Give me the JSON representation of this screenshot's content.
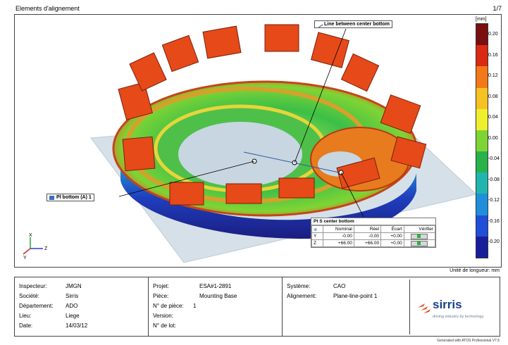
{
  "header": {
    "title": "Elements d'alignement",
    "page": "1/7"
  },
  "colorbar": {
    "unit": "[mm]",
    "ticks": [
      "0.20",
      "0.16",
      "0.12",
      "0.08",
      "0.04",
      "0.00",
      "-0.04",
      "-0.08",
      "-0.12",
      "-0.16",
      "-0.20"
    ],
    "colors": [
      "#7a0f10",
      "#d92a13",
      "#f2781a",
      "#f6c221",
      "#f0ef2c",
      "#7fd435",
      "#28b24a",
      "#1fb6b0",
      "#1f8fdb",
      "#1f4ed8",
      "#1a1d9a"
    ]
  },
  "callouts": {
    "line": "Line between center bottom",
    "plane": "Pl bottom (A) 1",
    "point": "Pt S center bottom"
  },
  "measure_table": {
    "headers": [
      "Nominal",
      "Réel",
      "Écart",
      "Vérifier"
    ],
    "rows": [
      {
        "axis": "Y",
        "nominal": "-0.00",
        "reel": "-0.00",
        "ecart": "+0.00"
      },
      {
        "axis": "Z",
        "nominal": "+66.00",
        "reel": "+66.00",
        "ecart": "+0.00"
      }
    ]
  },
  "axes": {
    "x": "X",
    "y": "Y",
    "z": "Z"
  },
  "unit_label": "Unité de longueur: mm",
  "info": {
    "inspecteur_label": "Inspecteur:",
    "inspecteur": "JMGN",
    "societe_label": "Société:",
    "societe": "Sirris",
    "departement_label": "Département:",
    "departement": "ADO",
    "lieu_label": "Lieu:",
    "lieu": "Liege",
    "date_label": "Date:",
    "date": "14/03/12",
    "projet_label": "Projet:",
    "projet": "ESA#1-2891",
    "piece_label": "Pièce:",
    "piece": "Mounting Base",
    "npiece_label": "N° de pièce:",
    "npiece": "1",
    "version_label": "Version:",
    "version": "",
    "nlot_label": "N° de lot:",
    "nlot": "",
    "systeme_label": "Système:",
    "systeme": "CAO",
    "alignement_label": "Alignement:",
    "alignement": "Plane-line-point 1"
  },
  "logo": {
    "name": "sirris",
    "tagline": "driving industry by technology"
  },
  "footer": "Generated with ATOS Professional V7.5"
}
